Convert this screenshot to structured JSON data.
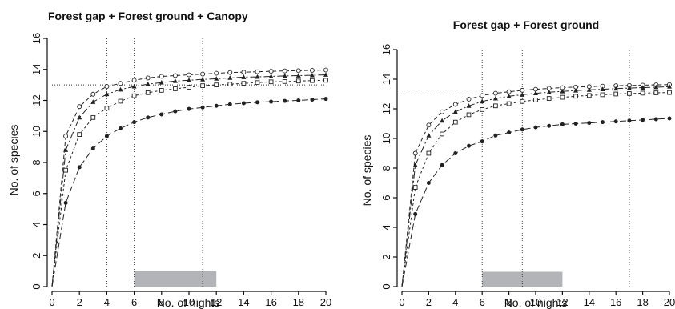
{
  "chart_data": [
    {
      "type": "line",
      "title": "Forest gap + Forest ground + Canopy",
      "xlabel": "No. of nights",
      "ylabel": "No. of species",
      "xlim": [
        0,
        20
      ],
      "ylim": [
        0,
        16
      ],
      "xticks": [
        "0",
        "2",
        "4",
        "6",
        "8",
        "10",
        "12",
        "14",
        "16",
        "18",
        "20"
      ],
      "yticks": [
        "0",
        "2",
        "4",
        "6",
        "8",
        "10",
        "12",
        "14",
        "16"
      ],
      "hline": 13,
      "vlines": [
        4,
        6,
        11
      ],
      "range_bar": {
        "x0": 6,
        "x1": 12,
        "y": 1,
        "color": "#b3b4b8"
      },
      "grid": false,
      "x": [
        0,
        1,
        2,
        3,
        4,
        5,
        6,
        7,
        8,
        9,
        10,
        11,
        12,
        13,
        14,
        15,
        16,
        17,
        18,
        19,
        20
      ],
      "series": [
        {
          "marker": "open-circle",
          "values": [
            0,
            9.7,
            11.6,
            12.4,
            12.9,
            13.1,
            13.3,
            13.45,
            13.55,
            13.6,
            13.65,
            13.7,
            13.75,
            13.8,
            13.82,
            13.85,
            13.88,
            13.9,
            13.92,
            13.94,
            13.96
          ]
        },
        {
          "marker": "filled-triangle",
          "values": [
            0,
            8.8,
            10.9,
            11.9,
            12.4,
            12.7,
            12.9,
            13.05,
            13.15,
            13.25,
            13.3,
            13.35,
            13.4,
            13.45,
            13.5,
            13.52,
            13.55,
            13.58,
            13.6,
            13.62,
            13.65
          ]
        },
        {
          "marker": "open-square",
          "values": [
            0,
            7.5,
            9.8,
            10.9,
            11.5,
            11.95,
            12.3,
            12.5,
            12.65,
            12.75,
            12.85,
            12.95,
            13.0,
            13.05,
            13.1,
            13.15,
            13.2,
            13.22,
            13.25,
            13.28,
            13.3
          ]
        },
        {
          "marker": "filled-circle",
          "values": [
            0,
            5.4,
            7.7,
            8.9,
            9.7,
            10.2,
            10.6,
            10.9,
            11.1,
            11.3,
            11.45,
            11.55,
            11.65,
            11.75,
            11.82,
            11.88,
            11.92,
            11.97,
            12.0,
            12.05,
            12.1
          ]
        }
      ]
    },
    {
      "type": "line",
      "title": "Forest gap + Forest ground",
      "xlabel": "No. of nights",
      "ylabel": "No. of species",
      "xlim": [
        0,
        20
      ],
      "ylim": [
        0,
        16
      ],
      "xticks": [
        "0",
        "2",
        "4",
        "6",
        "8",
        "10",
        "12",
        "14",
        "16",
        "18",
        "20"
      ],
      "yticks": [
        "0",
        "2",
        "4",
        "6",
        "8",
        "10",
        "12",
        "14",
        "16"
      ],
      "hline": 13,
      "vlines": [
        6,
        9,
        17
      ],
      "range_bar": {
        "x0": 6,
        "x1": 12,
        "y": 1,
        "color": "#b3b4b8"
      },
      "grid": false,
      "x": [
        0,
        1,
        2,
        3,
        4,
        5,
        6,
        7,
        8,
        9,
        10,
        11,
        12,
        13,
        14,
        15,
        16,
        17,
        18,
        19,
        20
      ],
      "series": [
        {
          "marker": "open-circle",
          "values": [
            0,
            9.0,
            10.9,
            11.8,
            12.3,
            12.65,
            12.9,
            13.05,
            13.15,
            13.25,
            13.32,
            13.38,
            13.43,
            13.47,
            13.5,
            13.53,
            13.56,
            13.58,
            13.6,
            13.62,
            13.64
          ]
        },
        {
          "marker": "filled-triangle",
          "values": [
            0,
            8.2,
            10.2,
            11.2,
            11.8,
            12.2,
            12.5,
            12.7,
            12.85,
            12.95,
            13.05,
            13.12,
            13.18,
            13.23,
            13.28,
            13.32,
            13.36,
            13.4,
            13.43,
            13.46,
            13.5
          ]
        },
        {
          "marker": "open-square",
          "values": [
            0,
            6.7,
            9.0,
            10.3,
            11.1,
            11.6,
            11.95,
            12.2,
            12.35,
            12.5,
            12.6,
            12.7,
            12.78,
            12.85,
            12.9,
            12.95,
            13.0,
            13.03,
            13.06,
            13.08,
            13.1
          ]
        },
        {
          "marker": "filled-circle",
          "values": [
            0,
            4.9,
            7.0,
            8.2,
            9.0,
            9.5,
            9.8,
            10.2,
            10.4,
            10.6,
            10.75,
            10.85,
            10.95,
            11.0,
            11.05,
            11.1,
            11.15,
            11.2,
            11.25,
            11.3,
            11.35
          ]
        }
      ]
    }
  ]
}
